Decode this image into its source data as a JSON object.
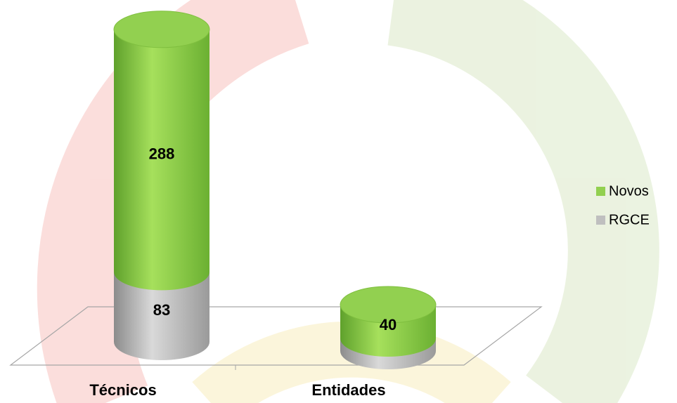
{
  "chart_data": {
    "type": "stacked-bar-3d",
    "categories": [
      "Técnicos",
      "Entidades"
    ],
    "series": [
      {
        "name": "RGCE",
        "color": "#bfbfbf",
        "values": [
          83,
          15
        ]
      },
      {
        "name": "Novos",
        "color": "#92d050",
        "values": [
          288,
          40
        ]
      }
    ],
    "legend": "right"
  }
}
